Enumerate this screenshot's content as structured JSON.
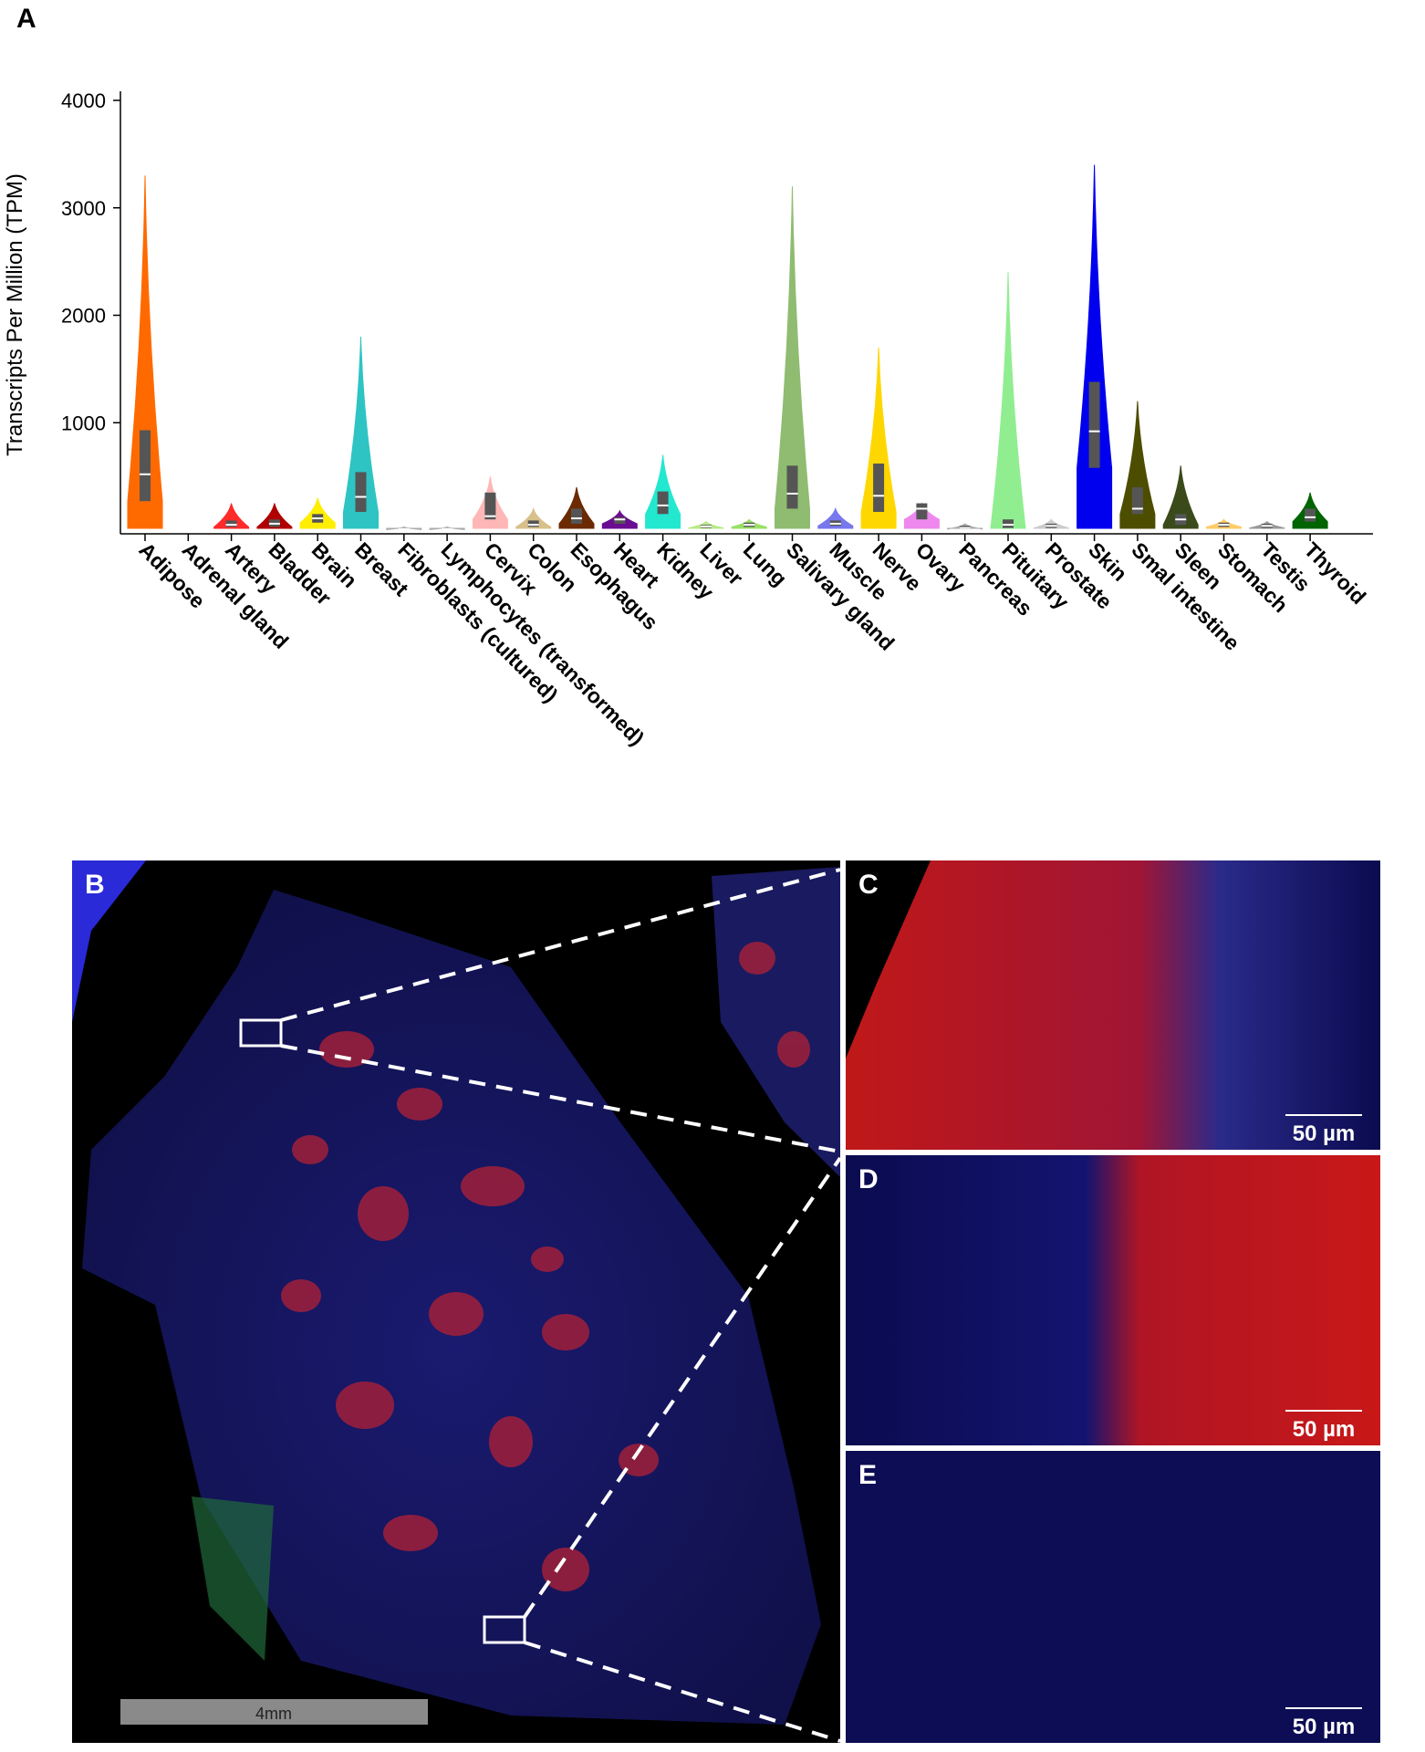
{
  "chart_data": {
    "type": "violin",
    "panel_label": "A",
    "y_label": "Transcripts Per Million (TPM)",
    "categories": [
      "Adipose",
      "Adrenal gland",
      "Artery",
      "Bladder",
      "Brain",
      "Breast",
      "Fibroblasts (cultured)",
      "Lymphocytes (transformed)",
      "Cervix",
      "Colon",
      "Esophagus",
      "Heart",
      "Kidney",
      "Liver",
      "Lung",
      "Salivary gland",
      "Muscle",
      "Nerve",
      "Ovary",
      "Pancreas",
      "Pituitary",
      "Prostate",
      "Skin",
      "Smal intestine",
      "Sleen",
      "Stomach",
      "Testis",
      "Thyroid"
    ],
    "ylim": [
      0,
      4000
    ],
    "yticks": [
      1000,
      2000,
      3000,
      4000
    ],
    "violins": [
      {
        "color": "#ff6a00",
        "max": 3300,
        "q3": 930,
        "median": 520,
        "q1": 270
      },
      null,
      {
        "color": "#ff2a2a",
        "max": 250,
        "q3": 90,
        "median": 50,
        "q1": 30
      },
      {
        "color": "#b00000",
        "max": 250,
        "q3": 100,
        "median": 60,
        "q1": 30
      },
      {
        "color": "#ffee00",
        "max": 300,
        "q3": 150,
        "median": 110,
        "q1": 70
      },
      {
        "color": "#2ec4c4",
        "max": 1800,
        "q3": 540,
        "median": 310,
        "q1": 170
      },
      {
        "color": "#aaaaaa",
        "max": 30,
        "q3": 15,
        "median": 10,
        "q1": 5
      },
      {
        "color": "#aaaaaa",
        "max": 30,
        "q3": 15,
        "median": 10,
        "q1": 5
      },
      {
        "color": "#ffb6b6",
        "max": 500,
        "q3": 350,
        "median": 130,
        "q1": 100
      },
      {
        "color": "#d8c08a",
        "max": 200,
        "q3": 90,
        "median": 50,
        "q1": 30
      },
      {
        "color": "#6b2a00",
        "max": 400,
        "q3": 200,
        "median": 110,
        "q1": 60
      },
      {
        "color": "#6a0d91",
        "max": 180,
        "q3": 120,
        "median": 100,
        "q1": 60
      },
      {
        "color": "#22e8d0",
        "max": 700,
        "q3": 360,
        "median": 230,
        "q1": 150
      },
      {
        "color": "#b8e986",
        "max": 80,
        "q3": 50,
        "median": 35,
        "q1": 20
      },
      {
        "color": "#99e066",
        "max": 100,
        "q3": 70,
        "median": 50,
        "q1": 30
      },
      {
        "color": "#8fbc70",
        "max": 3200,
        "q3": 600,
        "median": 340,
        "q1": 200
      },
      {
        "color": "#7777ee",
        "max": 200,
        "q3": 90,
        "median": 60,
        "q1": 40
      },
      {
        "color": "#ffd700",
        "max": 1700,
        "q3": 620,
        "median": 320,
        "q1": 170
      },
      {
        "color": "#ee88ee",
        "max": 250,
        "q3": 250,
        "median": 200,
        "q1": 100
      },
      {
        "color": "#aaaaaa",
        "max": 60,
        "q3": 40,
        "median": 20,
        "q1": 10
      },
      {
        "color": "#90ee90",
        "max": 2400,
        "q3": 100,
        "median": 50,
        "q1": 20
      },
      {
        "color": "#cccccc",
        "max": 100,
        "q3": 60,
        "median": 40,
        "q1": 20
      },
      {
        "color": "#0000ee",
        "max": 3400,
        "q3": 1380,
        "median": 920,
        "q1": 580
      },
      {
        "color": "#4d4d00",
        "max": 1200,
        "q3": 400,
        "median": 200,
        "q1": 150
      },
      {
        "color": "#3b4a1a",
        "max": 600,
        "q3": 150,
        "median": 100,
        "q1": 50
      },
      {
        "color": "#ffcc66",
        "max": 100,
        "q3": 70,
        "median": 50,
        "q1": 30
      },
      {
        "color": "#999999",
        "max": 80,
        "q3": 60,
        "median": 40,
        "q1": 20
      },
      {
        "color": "#006400",
        "max": 350,
        "q3": 200,
        "median": 120,
        "q1": 80
      }
    ]
  },
  "panels": [
    {
      "label": "B",
      "scale_bar": "4mm"
    },
    {
      "label": "C",
      "scale_bar": "50 µm"
    },
    {
      "label": "D",
      "scale_bar": "50 µm"
    },
    {
      "label": "E",
      "scale_bar": "50 µm"
    }
  ]
}
